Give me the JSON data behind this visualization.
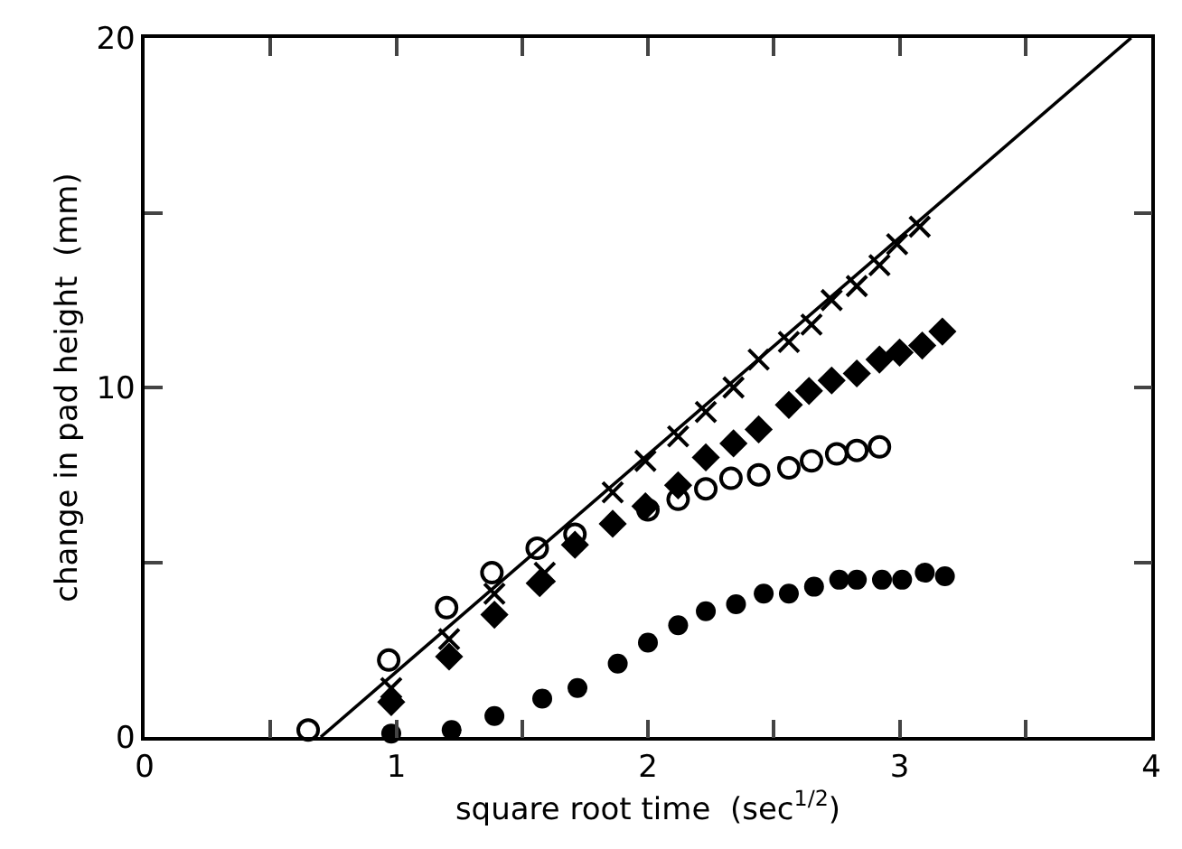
{
  "chart_data": {
    "type": "scatter",
    "xlabel": "square root time  (sec$^{1/2}$)",
    "ylabel": "change in pad height  (mm)",
    "xlim": [
      0,
      4
    ],
    "ylim": [
      0,
      20
    ],
    "xticks": [
      0,
      {
        "value": 0.5,
        "label": null
      },
      1,
      {
        "value": 1.5,
        "label": null
      },
      2,
      {
        "value": 2.5,
        "label": null
      },
      3,
      {
        "value": 3.5,
        "label": null
      },
      4
    ],
    "yticks": [
      0,
      {
        "value": 5,
        "label": null
      },
      10,
      {
        "value": 15,
        "label": null
      },
      20
    ],
    "series": [
      {
        "type": "line",
        "color": "#000000",
        "marker": "none",
        "line_style": "solid",
        "x": [
          0.7,
          3.92
        ],
        "values": [
          0,
          20
        ]
      },
      {
        "color": "#000000",
        "marker": "cross",
        "x": [
          0.98,
          1.21,
          1.39,
          1.59,
          1.86,
          1.99,
          2.12,
          2.23,
          2.34,
          2.44,
          2.56,
          2.65,
          2.73,
          2.83,
          2.92,
          2.99,
          3.08
        ],
        "values": [
          1.4,
          2.8,
          4.1,
          4.7,
          7.0,
          7.9,
          8.6,
          9.3,
          10.0,
          10.8,
          11.3,
          11.8,
          12.5,
          12.9,
          13.5,
          14.1,
          14.6
        ]
      },
      {
        "color": "#000000",
        "marker": "diamond",
        "x": [
          0.98,
          1.21,
          1.39,
          1.57,
          1.71,
          1.86,
          1.99,
          2.12,
          2.23,
          2.34,
          2.44,
          2.56,
          2.64,
          2.73,
          2.83,
          2.92,
          3.0,
          3.09,
          3.17
        ],
        "values": [
          1.0,
          2.3,
          3.5,
          4.4,
          5.5,
          6.1,
          6.6,
          7.2,
          8.0,
          8.4,
          8.8,
          9.5,
          9.9,
          10.2,
          10.4,
          10.8,
          11.0,
          11.2,
          11.6
        ]
      },
      {
        "color": "#000000",
        "marker": "circle-open",
        "x": [
          0.65,
          0.97,
          1.2,
          1.38,
          1.56,
          1.71,
          2.0,
          2.12,
          2.23,
          2.33,
          2.44,
          2.56,
          2.65,
          2.75,
          2.83,
          2.92
        ],
        "values": [
          0.2,
          2.2,
          3.7,
          4.7,
          5.4,
          5.8,
          6.5,
          6.8,
          7.1,
          7.4,
          7.5,
          7.7,
          7.9,
          8.1,
          8.2,
          8.3
        ]
      },
      {
        "color": "#000000",
        "marker": "circle",
        "x": [
          0.98,
          1.22,
          1.39,
          1.58,
          1.72,
          1.88,
          2.0,
          2.12,
          2.23,
          2.35,
          2.46,
          2.56,
          2.66,
          2.76,
          2.83,
          2.93,
          3.01,
          3.1,
          3.18
        ],
        "values": [
          0.1,
          0.2,
          0.6,
          1.1,
          1.4,
          2.1,
          2.7,
          3.2,
          3.6,
          3.8,
          4.1,
          4.1,
          4.3,
          4.5,
          4.5,
          4.5,
          4.5,
          4.7,
          4.6
        ]
      }
    ]
  }
}
